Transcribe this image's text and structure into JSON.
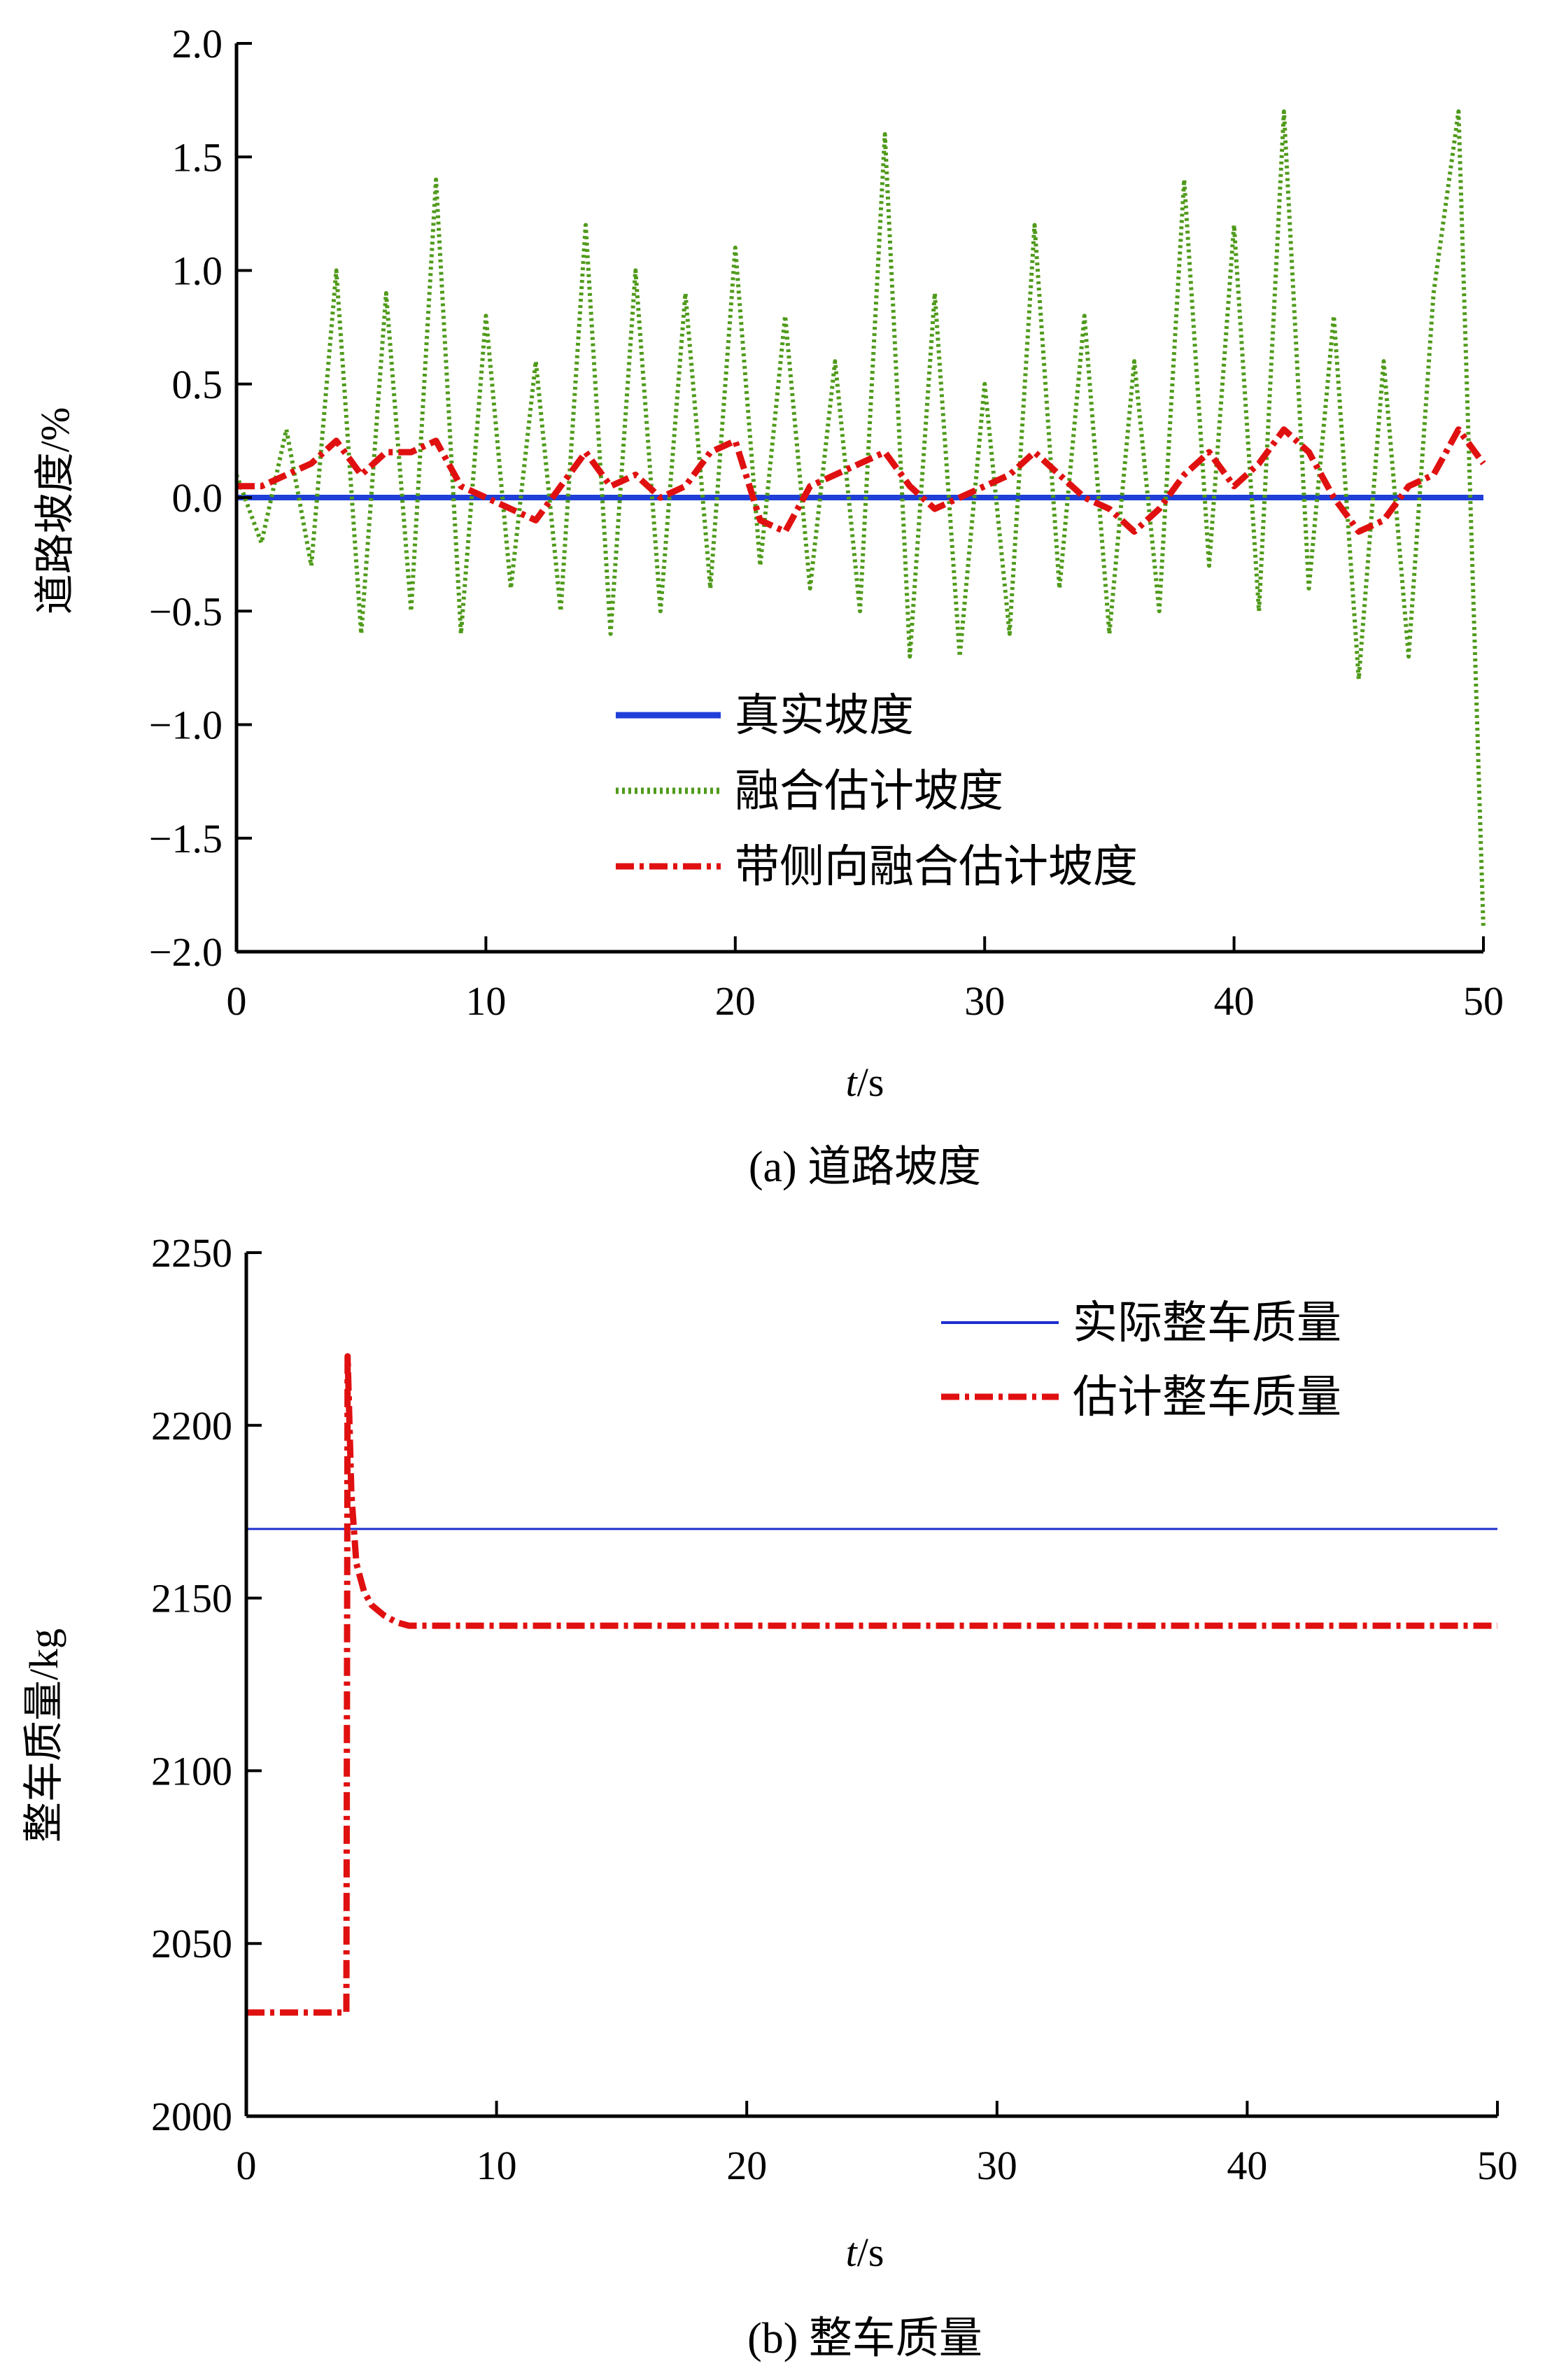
{
  "chart_data": [
    {
      "type": "line",
      "caption": "(a) 道路坡度",
      "xlabel_italic": "t",
      "xlabel_unit": "/s",
      "ylabel": "道路坡度/%",
      "xlim": [
        0,
        50
      ],
      "ylim": [
        -2.0,
        2.0
      ],
      "xticks": [
        0,
        10,
        20,
        30,
        40,
        50
      ],
      "xtick_labels": [
        "0",
        "10",
        "20",
        "30",
        "40",
        "50"
      ],
      "yticks": [
        2.0,
        1.5,
        1.0,
        0.5,
        0.0,
        -0.5,
        -1.0,
        -1.5,
        -2.0
      ],
      "ytick_labels": [
        "2.0",
        "1.5",
        "1.0",
        "0.5",
        "0.0",
        "−0.5",
        "−1.0",
        "−1.5",
        "−2.0"
      ],
      "grid": false,
      "legend_position": "bottom-center",
      "x": [
        0,
        1,
        2,
        3,
        4,
        5,
        6,
        7,
        8,
        9,
        10,
        11,
        12,
        13,
        14,
        15,
        16,
        17,
        18,
        19,
        20,
        21,
        22,
        23,
        24,
        25,
        26,
        27,
        28,
        29,
        30,
        31,
        32,
        33,
        34,
        35,
        36,
        37,
        38,
        39,
        40,
        41,
        42,
        43,
        44,
        45,
        46,
        47,
        48,
        49,
        50
      ],
      "series": [
        {
          "name": "真实坡度",
          "color": "#1f3fd8",
          "style": "solid",
          "values": [
            0,
            0,
            0,
            0,
            0,
            0,
            0,
            0,
            0,
            0,
            0,
            0,
            0,
            0,
            0,
            0,
            0,
            0,
            0,
            0,
            0,
            0,
            0,
            0,
            0,
            0,
            0,
            0,
            0,
            0,
            0,
            0,
            0,
            0,
            0,
            0,
            0,
            0,
            0,
            0,
            0,
            0,
            0,
            0,
            0,
            0,
            0,
            0,
            0,
            0,
            0
          ]
        },
        {
          "name": "融合估计坡度",
          "color": "#4f9a1a",
          "style": "dotted",
          "values": [
            0.1,
            -0.2,
            0.3,
            -0.3,
            1.0,
            -0.6,
            0.9,
            -0.5,
            1.4,
            -0.6,
            0.8,
            -0.4,
            0.6,
            -0.5,
            1.2,
            -0.6,
            1.0,
            -0.5,
            0.9,
            -0.4,
            1.1,
            -0.3,
            0.8,
            -0.4,
            0.6,
            -0.5,
            1.6,
            -0.7,
            0.9,
            -0.7,
            0.5,
            -0.6,
            1.2,
            -0.4,
            0.8,
            -0.6,
            0.6,
            -0.5,
            1.4,
            -0.3,
            1.2,
            -0.5,
            1.7,
            -0.4,
            0.8,
            -0.8,
            0.6,
            -0.7,
            0.9,
            1.7,
            -1.9
          ]
        },
        {
          "name": "带侧向融合估计坡度",
          "color": "#e01010",
          "style": "dashdot",
          "values": [
            0.05,
            0.05,
            0.1,
            0.15,
            0.25,
            0.1,
            0.2,
            0.2,
            0.25,
            0.05,
            0.0,
            -0.05,
            -0.1,
            0.05,
            0.2,
            0.05,
            0.1,
            0.0,
            0.05,
            0.2,
            0.25,
            -0.1,
            -0.15,
            0.05,
            0.1,
            0.15,
            0.2,
            0.05,
            -0.05,
            0.0,
            0.05,
            0.1,
            0.2,
            0.1,
            0.0,
            -0.05,
            -0.15,
            -0.05,
            0.1,
            0.2,
            0.05,
            0.15,
            0.3,
            0.2,
            0.0,
            -0.15,
            -0.1,
            0.05,
            0.1,
            0.3,
            0.15
          ]
        }
      ]
    },
    {
      "type": "line",
      "caption": "(b) 整车质量",
      "xlabel_italic": "t",
      "xlabel_unit": "/s",
      "ylabel": "整车质量/kg",
      "xlim": [
        0,
        50
      ],
      "ylim": [
        2000,
        2250
      ],
      "xticks": [
        0,
        10,
        20,
        30,
        40,
        50
      ],
      "xtick_labels": [
        "0",
        "10",
        "20",
        "30",
        "40",
        "50"
      ],
      "yticks": [
        2250,
        2200,
        2150,
        2100,
        2050,
        2000
      ],
      "ytick_labels": [
        "2250",
        "2200",
        "2150",
        "2100",
        "2050",
        "2000"
      ],
      "grid": false,
      "legend_position": "top-right",
      "series": [
        {
          "name": "实际整车质量",
          "color": "#1f2fd0",
          "style": "solid",
          "x": [
            0,
            50
          ],
          "values": [
            2170,
            2170
          ]
        },
        {
          "name": "估计整车质量",
          "color": "#e01010",
          "style": "dashdot",
          "x": [
            0,
            4.0,
            4.05,
            4.2,
            4.4,
            4.7,
            5.0,
            5.5,
            6.0,
            6.5,
            50
          ],
          "values": [
            2030,
            2030,
            2220,
            2180,
            2160,
            2152,
            2148,
            2145,
            2143,
            2142,
            2142
          ]
        }
      ]
    }
  ]
}
